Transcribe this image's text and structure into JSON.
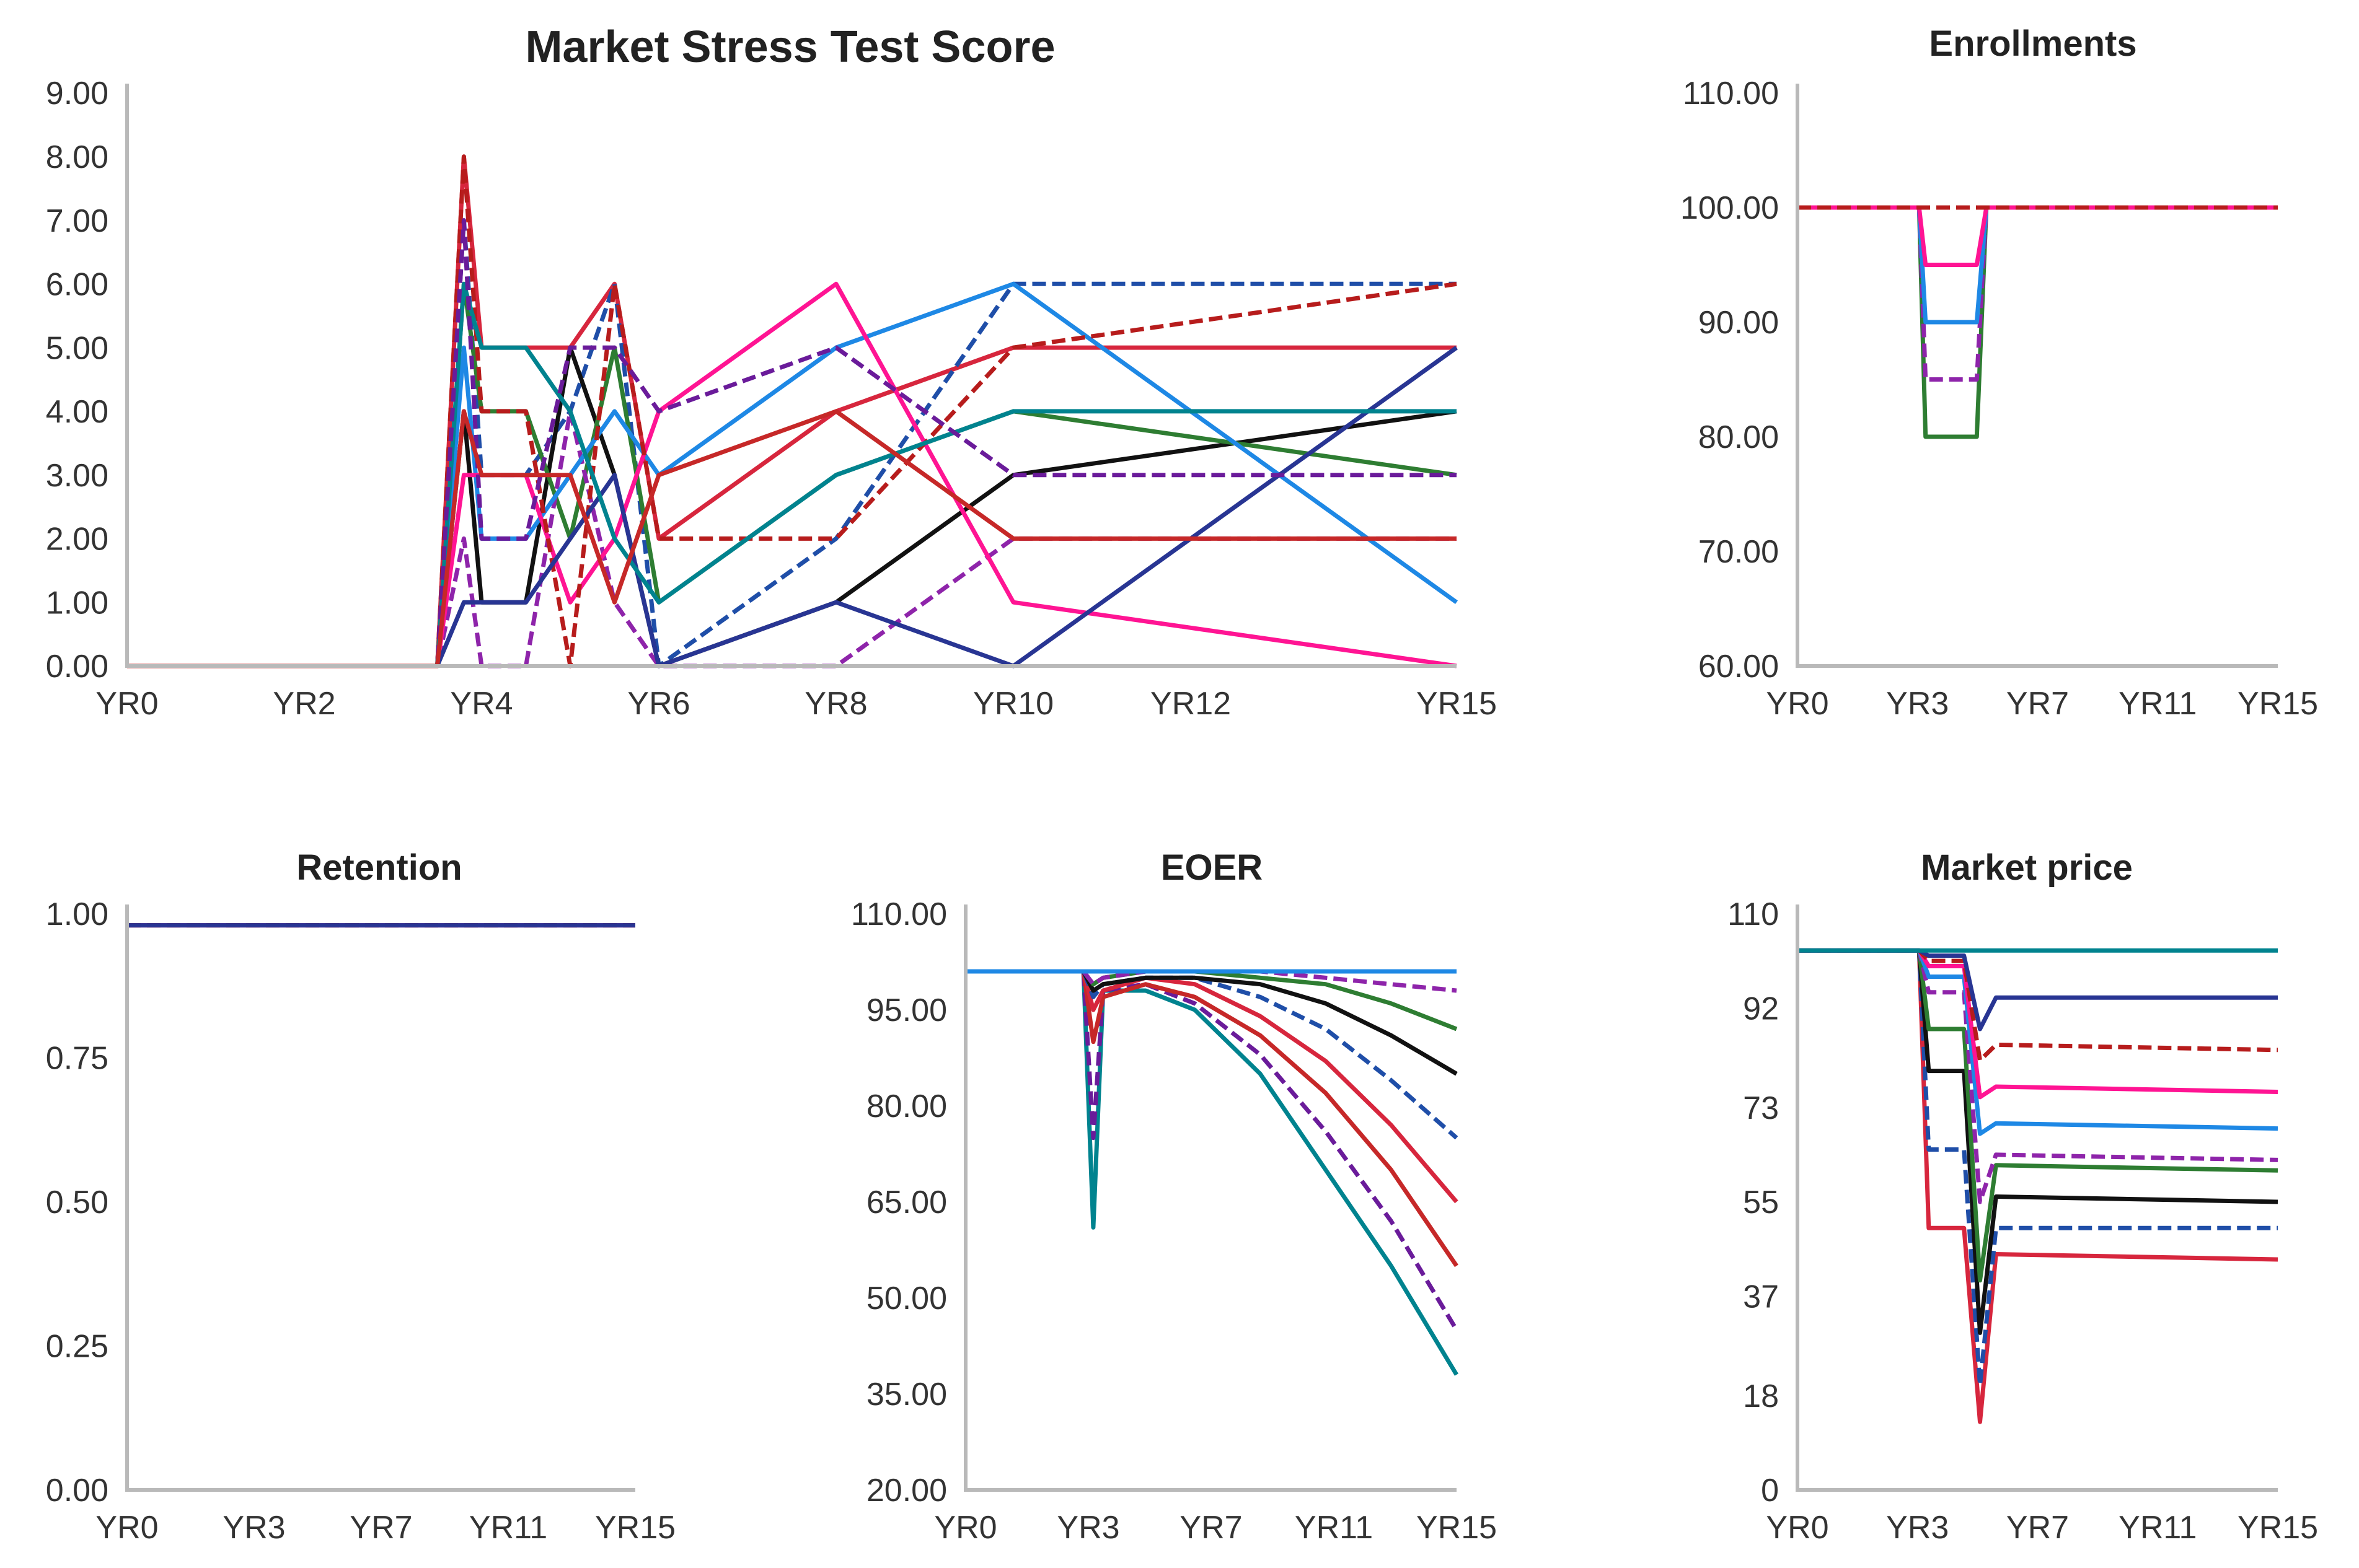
{
  "palette": [
    "#d7263d",
    "#1f4ea8",
    "#111111",
    "#2e7d32",
    "#8e24aa",
    "#1e88e5",
    "#ff1493",
    "#b71c1c",
    "#283593",
    "#00838f",
    "#6a1b9a",
    "#c62828"
  ],
  "chart_data": [
    {
      "id": "stress",
      "type": "line",
      "title": "Market Stress Test Score",
      "xlabel": "",
      "ylabel": "",
      "x_range": [
        0,
        15
      ],
      "x_ticks": [
        0,
        2,
        4,
        6,
        8,
        10,
        12,
        15
      ],
      "x_tick_labels": [
        "YR0",
        "YR2",
        "YR4",
        "YR6",
        "YR8",
        "YR10",
        "YR12",
        "YR15"
      ],
      "ylim": [
        0,
        9
      ],
      "y_ticks": [
        0,
        1,
        2,
        3,
        4,
        5,
        6,
        7,
        8,
        9
      ],
      "y_tick_labels": [
        "0.00",
        "1.00",
        "2.00",
        "3.00",
        "4.00",
        "5.00",
        "6.00",
        "7.00",
        "8.00",
        "9.00"
      ],
      "legend": "none",
      "grid": false,
      "series_note": "many overlapping simulated scenario paths",
      "series": [
        {
          "x": [
            0,
            3.5,
            3.8,
            4,
            4.5,
            5,
            5.5,
            6,
            8,
            10,
            15
          ],
          "values": [
            0,
            0,
            8,
            5,
            5,
            5,
            6,
            2,
            4,
            5,
            5
          ]
        },
        {
          "x": [
            0,
            3.5,
            3.8,
            4,
            4.5,
            5,
            5.5,
            6,
            8,
            10,
            15
          ],
          "values": [
            0,
            0,
            7,
            3,
            3,
            4,
            6,
            0,
            2,
            6,
            6
          ]
        },
        {
          "x": [
            0,
            3.5,
            3.8,
            4,
            4.5,
            5,
            5.5,
            6,
            8,
            10,
            15
          ],
          "values": [
            0,
            0,
            4,
            1,
            1,
            5,
            3,
            0,
            1,
            3,
            4
          ]
        },
        {
          "x": [
            0,
            3.5,
            3.8,
            4,
            4.5,
            5,
            5.5,
            6,
            8,
            10,
            15
          ],
          "values": [
            0,
            0,
            6,
            4,
            4,
            2,
            5,
            1,
            3,
            4,
            3
          ]
        },
        {
          "x": [
            0,
            3.5,
            3.8,
            4,
            4.5,
            5,
            5.5,
            6,
            8,
            10,
            15
          ],
          "values": [
            0,
            0,
            2,
            0,
            0,
            4,
            1,
            0,
            0,
            2,
            2
          ]
        },
        {
          "x": [
            0,
            3.5,
            3.8,
            4,
            4.5,
            5,
            5.5,
            6,
            8,
            10,
            15
          ],
          "values": [
            0,
            0,
            5,
            2,
            2,
            3,
            4,
            3,
            5,
            6,
            1
          ]
        },
        {
          "x": [
            0,
            3.5,
            3.8,
            4,
            4.5,
            5,
            5.5,
            6,
            8,
            10,
            15
          ],
          "values": [
            0,
            0,
            3,
            3,
            3,
            1,
            2,
            4,
            6,
            1,
            0
          ]
        },
        {
          "x": [
            0,
            3.5,
            3.8,
            4,
            4.5,
            5,
            5.5,
            6,
            8,
            10,
            15
          ],
          "values": [
            0,
            0,
            8,
            4,
            4,
            0,
            6,
            2,
            2,
            5,
            6
          ]
        },
        {
          "x": [
            0,
            3.5,
            3.8,
            4,
            4.5,
            5,
            5.5,
            6,
            8,
            10,
            15
          ],
          "values": [
            0,
            0,
            1,
            1,
            1,
            2,
            3,
            0,
            1,
            0,
            5
          ]
        },
        {
          "x": [
            0,
            3.5,
            3.8,
            4,
            4.5,
            5,
            5.5,
            6,
            8,
            10,
            15
          ],
          "values": [
            0,
            0,
            6,
            5,
            5,
            4,
            2,
            1,
            3,
            4,
            4
          ]
        },
        {
          "x": [
            0,
            3.5,
            3.8,
            4,
            4.5,
            5,
            5.5,
            6,
            8,
            10,
            15
          ],
          "values": [
            0,
            0,
            7,
            2,
            2,
            5,
            5,
            4,
            5,
            3,
            3
          ]
        },
        {
          "x": [
            0,
            3.5,
            3.8,
            4,
            4.5,
            5,
            5.5,
            6,
            8,
            10,
            15
          ],
          "values": [
            0,
            0,
            4,
            3,
            3,
            3,
            1,
            3,
            4,
            2,
            2
          ]
        }
      ]
    },
    {
      "id": "enroll",
      "type": "line",
      "title": "Enrollments",
      "xlabel": "",
      "ylabel": "",
      "x_range": [
        0,
        15
      ],
      "x_ticks": [
        0,
        3.75,
        7.5,
        11.25,
        15
      ],
      "x_tick_labels": [
        "YR0",
        "YR3",
        "YR7",
        "YR11",
        "YR15"
      ],
      "ylim": [
        60,
        110
      ],
      "y_ticks": [
        60,
        70,
        80,
        90,
        100,
        110
      ],
      "y_tick_labels": [
        "60.00",
        "70.00",
        "80.00",
        "90.00",
        "100.00",
        "110.00"
      ],
      "legend": "none",
      "grid": false,
      "series": [
        {
          "x": [
            0,
            3.8,
            4.0,
            5.6,
            5.9,
            15
          ],
          "values": [
            100,
            100,
            80,
            80,
            100,
            100
          ]
        },
        {
          "x": [
            0,
            3.8,
            4.0,
            5.6,
            5.9,
            15
          ],
          "values": [
            100,
            100,
            85,
            85,
            100,
            100
          ]
        },
        {
          "x": [
            0,
            3.8,
            4.0,
            5.6,
            5.9,
            15
          ],
          "values": [
            100,
            100,
            90,
            90,
            100,
            100
          ]
        },
        {
          "x": [
            0,
            3.8,
            4.0,
            5.6,
            5.9,
            15
          ],
          "values": [
            100,
            100,
            95,
            95,
            100,
            100
          ]
        },
        {
          "x": [
            0,
            15
          ],
          "values": [
            100,
            100
          ]
        }
      ]
    },
    {
      "id": "retention",
      "type": "line",
      "title": "Retention",
      "xlabel": "",
      "ylabel": "",
      "x_range": [
        0,
        15
      ],
      "x_ticks": [
        0,
        3.75,
        7.5,
        11.25,
        15
      ],
      "x_tick_labels": [
        "YR0",
        "YR3",
        "YR7",
        "YR11",
        "YR15"
      ],
      "ylim": [
        0,
        1
      ],
      "y_ticks": [
        0,
        0.25,
        0.5,
        0.75,
        1
      ],
      "y_tick_labels": [
        "0.00",
        "0.25",
        "0.50",
        "0.75",
        "1.00"
      ],
      "legend": "none",
      "grid": false,
      "series": [
        {
          "x": [
            0,
            15
          ],
          "values": [
            0.98,
            0.98
          ]
        },
        {
          "x": [
            0,
            15
          ],
          "values": [
            0.98,
            0.98
          ]
        },
        {
          "x": [
            0,
            15
          ],
          "values": [
            0.98,
            0.98
          ]
        }
      ]
    },
    {
      "id": "eoer",
      "type": "line",
      "title": "EOER",
      "xlabel": "",
      "ylabel": "",
      "x_range": [
        0,
        15
      ],
      "x_ticks": [
        0,
        3.75,
        7.5,
        11.25,
        15
      ],
      "x_tick_labels": [
        "YR0",
        "YR3",
        "YR7",
        "YR11",
        "YR15"
      ],
      "ylim": [
        20,
        110
      ],
      "y_ticks": [
        20,
        35,
        50,
        65,
        80,
        95,
        110
      ],
      "y_tick_labels": [
        "20.00",
        "35.00",
        "50.00",
        "65.00",
        "80.00",
        "95.00",
        "110.00"
      ],
      "legend": "none",
      "grid": false,
      "series": [
        {
          "x": [
            0,
            3.6,
            3.9,
            4.2,
            5.5,
            7,
            9,
            11,
            13,
            15
          ],
          "values": [
            101,
            101,
            61,
            98,
            98,
            95,
            85,
            70,
            55,
            38
          ]
        },
        {
          "x": [
            0,
            3.6,
            3.9,
            4.2,
            5.5,
            7,
            9,
            11,
            13,
            15
          ],
          "values": [
            101,
            101,
            75,
            98,
            99,
            96,
            88,
            76,
            62,
            45
          ]
        },
        {
          "x": [
            0,
            3.6,
            3.9,
            4.2,
            5.5,
            7,
            9,
            11,
            13,
            15
          ],
          "values": [
            101,
            101,
            90,
            97,
            99,
            97,
            91,
            82,
            70,
            55
          ]
        },
        {
          "x": [
            0,
            3.6,
            3.9,
            4.2,
            5.5,
            7,
            9,
            11,
            13,
            15
          ],
          "values": [
            101,
            101,
            95,
            98,
            100,
            99,
            94,
            87,
            77,
            65
          ]
        },
        {
          "x": [
            0,
            3.6,
            3.9,
            4.2,
            5.5,
            7,
            9,
            11,
            13,
            15
          ],
          "values": [
            101,
            101,
            97,
            99,
            100,
            100,
            97,
            92,
            84,
            75
          ]
        },
        {
          "x": [
            0,
            3.6,
            3.9,
            4.2,
            5.5,
            7,
            9,
            11,
            13,
            15
          ],
          "values": [
            101,
            101,
            98,
            99,
            100,
            100,
            99,
            96,
            91,
            85
          ]
        },
        {
          "x": [
            0,
            3.6,
            3.9,
            4.2,
            5.5,
            7,
            9,
            11,
            13,
            15
          ],
          "values": [
            101,
            101,
            99,
            100,
            101,
            101,
            100,
            99,
            96,
            92
          ]
        },
        {
          "x": [
            0,
            3.6,
            3.9,
            4.2,
            5.5,
            7,
            9,
            11,
            13,
            15
          ],
          "values": [
            101,
            101,
            99,
            100,
            101,
            101,
            101,
            100,
            99,
            98
          ]
        },
        {
          "x": [
            0,
            15
          ],
          "values": [
            101,
            101
          ]
        }
      ]
    },
    {
      "id": "price",
      "type": "line",
      "title": "Market price",
      "xlabel": "",
      "ylabel": "",
      "x_range": [
        0,
        15
      ],
      "x_ticks": [
        0,
        3.75,
        7.5,
        11.25,
        15
      ],
      "x_tick_labels": [
        "YR0",
        "YR3",
        "YR7",
        "YR11",
        "YR15"
      ],
      "ylim": [
        0,
        110
      ],
      "y_ticks": [
        0,
        18,
        37,
        55,
        73,
        92,
        110
      ],
      "y_tick_labels": [
        "0",
        "18",
        "37",
        "55",
        "73",
        "92",
        "110"
      ],
      "legend": "none",
      "grid": false,
      "series": [
        {
          "x": [
            0,
            3.8,
            4.1,
            5.2,
            5.7,
            6.2,
            15
          ],
          "values": [
            103,
            103,
            50,
            50,
            13,
            45,
            44
          ]
        },
        {
          "x": [
            0,
            3.8,
            4.1,
            5.2,
            5.7,
            6.2,
            15
          ],
          "values": [
            103,
            103,
            65,
            65,
            20,
            50,
            50
          ]
        },
        {
          "x": [
            0,
            3.8,
            4.1,
            5.2,
            5.7,
            6.2,
            15
          ],
          "values": [
            103,
            103,
            80,
            80,
            30,
            56,
            55
          ]
        },
        {
          "x": [
            0,
            3.8,
            4.1,
            5.2,
            5.7,
            6.2,
            15
          ],
          "values": [
            103,
            103,
            88,
            88,
            40,
            62,
            61
          ]
        },
        {
          "x": [
            0,
            3.8,
            4.1,
            5.2,
            5.7,
            6.2,
            15
          ],
          "values": [
            103,
            103,
            95,
            95,
            55,
            64,
            63
          ]
        },
        {
          "x": [
            0,
            3.8,
            4.1,
            5.2,
            5.7,
            6.2,
            15
          ],
          "values": [
            103,
            103,
            98,
            98,
            68,
            70,
            69
          ]
        },
        {
          "x": [
            0,
            3.8,
            4.1,
            5.2,
            5.7,
            6.2,
            15
          ],
          "values": [
            103,
            103,
            100,
            100,
            75,
            77,
            76
          ]
        },
        {
          "x": [
            0,
            3.8,
            4.1,
            5.2,
            5.7,
            6.2,
            15
          ],
          "values": [
            103,
            103,
            101,
            101,
            82,
            85,
            84
          ]
        },
        {
          "x": [
            0,
            3.8,
            4.1,
            5.2,
            5.7,
            6.2,
            15
          ],
          "values": [
            103,
            103,
            102,
            102,
            88,
            94,
            94
          ]
        },
        {
          "x": [
            0,
            15
          ],
          "values": [
            103,
            103
          ]
        }
      ]
    }
  ]
}
